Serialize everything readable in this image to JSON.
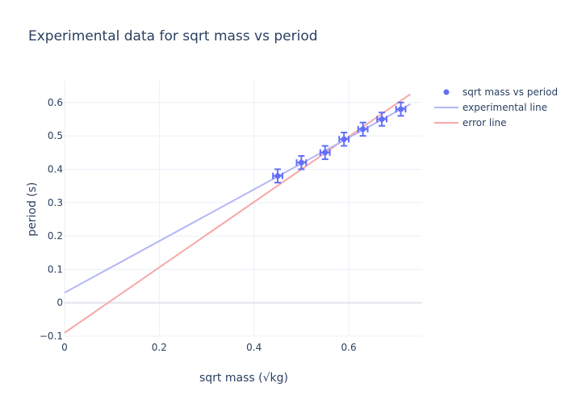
{
  "chart_data": {
    "type": "scatter",
    "title": "Experimental data for sqrt mass vs period",
    "xlabel": "sqrt mass (√kg)",
    "ylabel": "period (s)",
    "xlim": [
      0,
      0.755
    ],
    "ylim": [
      -0.1,
      0.665
    ],
    "x_ticks": [
      0,
      0.2,
      0.4,
      0.6
    ],
    "x_tick_labels": [
      "0",
      "0.2",
      "0.4",
      "0.6"
    ],
    "y_ticks": [
      -0.1,
      0,
      0.1,
      0.2,
      0.3,
      0.4,
      0.5,
      0.6
    ],
    "y_tick_labels": [
      "−0.1",
      "0",
      "0.1",
      "0.2",
      "0.3",
      "0.4",
      "0.5",
      "0.6"
    ],
    "grid": true,
    "legend_position": "top-right",
    "series": [
      {
        "name": "sqrt mass vs period",
        "type": "scatter",
        "color": "#636efa",
        "x": [
          0.45,
          0.5,
          0.55,
          0.59,
          0.63,
          0.67,
          0.71
        ],
        "y": [
          0.38,
          0.42,
          0.45,
          0.49,
          0.52,
          0.55,
          0.58
        ],
        "error_x": 0.01,
        "error_y": 0.02
      },
      {
        "name": "experimental line",
        "type": "line",
        "color": "#b3b8f5",
        "x": [
          0,
          0.73
        ],
        "y": [
          0.03,
          0.595
        ]
      },
      {
        "name": "error line",
        "type": "line",
        "color": "#f5a8a8",
        "x": [
          0,
          0.73
        ],
        "y": [
          -0.09,
          0.625
        ]
      }
    ]
  }
}
